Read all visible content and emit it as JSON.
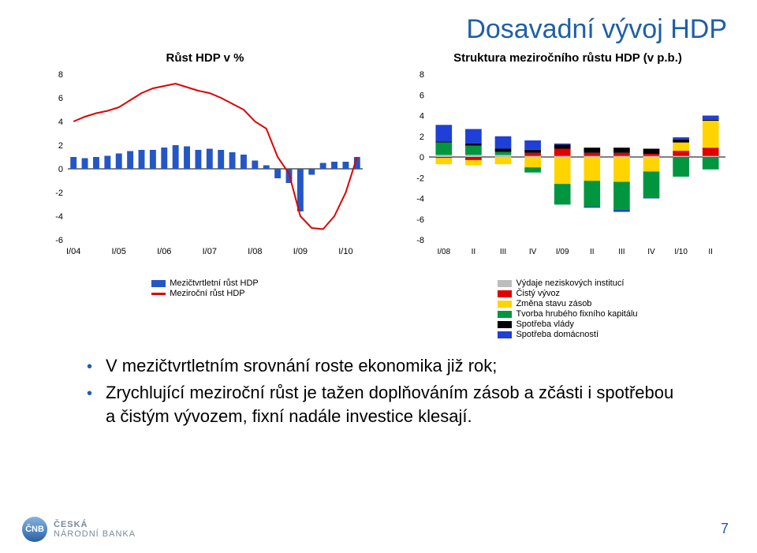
{
  "title": "Dosavadní vývoj HDP",
  "bullets": [
    "V mezičtvrtletním srovnání roste ekonomika již rok;",
    "Zrychlující meziroční růst je tažen doplňováním zásob a zčásti i spotřebou a čistým vývozem, fixní nadále investice klesají."
  ],
  "page_number": "7",
  "logo_text_top": "ČESKÁ",
  "logo_text_bottom": "NÁRODNÍ BANKA",
  "logo_badge": "ČNB",
  "chart_left": {
    "title": "Růst HDP v %",
    "type": "combo-bar-line",
    "background_color": "#ffffff",
    "x_labels": [
      "I/04",
      "I/05",
      "I/06",
      "I/07",
      "I/08",
      "I/09",
      "I/10"
    ],
    "x_positions": [
      0,
      4,
      8,
      12,
      16,
      20,
      24
    ],
    "n_bars": 26,
    "ylim": [
      -6,
      8
    ],
    "ytick_step": 2,
    "bar_color": "#2457c5",
    "line_color": "#e00000",
    "line_width": 2,
    "legend": [
      {
        "swatch": "#2457c5",
        "label": "Mezičtvrtletní růst HDP",
        "type": "bar"
      },
      {
        "swatch": "#e00000",
        "label": "Meziroční růst HDP",
        "type": "line"
      }
    ],
    "bar_values": [
      1.0,
      0.9,
      1.0,
      1.1,
      1.3,
      1.5,
      1.6,
      1.6,
      1.8,
      2.0,
      1.9,
      1.6,
      1.7,
      1.6,
      1.4,
      1.2,
      0.7,
      0.3,
      -0.8,
      -1.2,
      -3.6,
      -0.5,
      0.5,
      0.6,
      0.6,
      1.0
    ],
    "line_values": [
      4.0,
      4.4,
      4.7,
      4.9,
      5.2,
      5.8,
      6.4,
      6.8,
      7.0,
      7.2,
      6.9,
      6.6,
      6.4,
      6.0,
      5.5,
      5.0,
      4.0,
      3.4,
      1.0,
      -0.4,
      -4.0,
      -5.0,
      -5.1,
      -4.0,
      -2.0,
      1.0
    ]
  },
  "chart_right": {
    "title": "Struktura meziročního růstu HDP (v p.b.)",
    "type": "stacked-bar",
    "background_color": "#ffffff",
    "x_labels": [
      "I/08",
      "II",
      "III",
      "IV",
      "I/09",
      "II",
      "III",
      "IV",
      "I/10",
      "II"
    ],
    "ylim": [
      -8,
      8
    ],
    "ytick_step": 2,
    "series": [
      {
        "key": "nonprofit",
        "color": "#bdbdbd",
        "label": "Výdaje neziskových institucí"
      },
      {
        "key": "net_export",
        "color": "#e00000",
        "label": "Čistý vývoz"
      },
      {
        "key": "inventories",
        "color": "#ffd400",
        "label": "Změna stavu zásob"
      },
      {
        "key": "fixed_cap",
        "color": "#009640",
        "label": "Tvorba hrubého fixního kapitálu"
      },
      {
        "key": "gov",
        "color": "#000000",
        "label": "Spotřeba vlády"
      },
      {
        "key": "households",
        "color": "#1f3fd6",
        "label": "Spotřeba domácností"
      }
    ],
    "data": [
      {
        "nonprofit": 0.2,
        "net_export": -0.1,
        "inventories": -0.6,
        "fixed_cap": 1.2,
        "gov": 0.1,
        "households": 1.6
      },
      {
        "nonprofit": 0.2,
        "net_export": -0.3,
        "inventories": -0.5,
        "fixed_cap": 0.9,
        "gov": 0.2,
        "households": 1.4
      },
      {
        "nonprofit": 0.2,
        "net_export": 0.0,
        "inventories": -0.7,
        "fixed_cap": 0.3,
        "gov": 0.3,
        "households": 1.2
      },
      {
        "nonprofit": 0.1,
        "net_export": 0.3,
        "inventories": -1.0,
        "fixed_cap": -0.5,
        "gov": 0.3,
        "households": 0.9
      },
      {
        "nonprofit": 0.1,
        "net_export": 0.7,
        "inventories": -2.6,
        "fixed_cap": -2.0,
        "gov": 0.4,
        "households": 0.1
      },
      {
        "nonprofit": 0.1,
        "net_export": 0.3,
        "inventories": -2.3,
        "fixed_cap": -2.5,
        "gov": 0.5,
        "households": -0.1
      },
      {
        "nonprofit": 0.1,
        "net_export": 0.3,
        "inventories": -2.4,
        "fixed_cap": -2.7,
        "gov": 0.5,
        "households": -0.2
      },
      {
        "nonprofit": 0.1,
        "net_export": 0.2,
        "inventories": -1.4,
        "fixed_cap": -2.5,
        "gov": 0.5,
        "households": -0.1
      },
      {
        "nonprofit": 0.1,
        "net_export": 0.5,
        "inventories": 0.8,
        "fixed_cap": -1.9,
        "gov": 0.3,
        "households": 0.2
      },
      {
        "nonprofit": 0.1,
        "net_export": 0.8,
        "inventories": 2.6,
        "fixed_cap": -1.2,
        "gov": 0.1,
        "households": 0.4
      }
    ]
  }
}
